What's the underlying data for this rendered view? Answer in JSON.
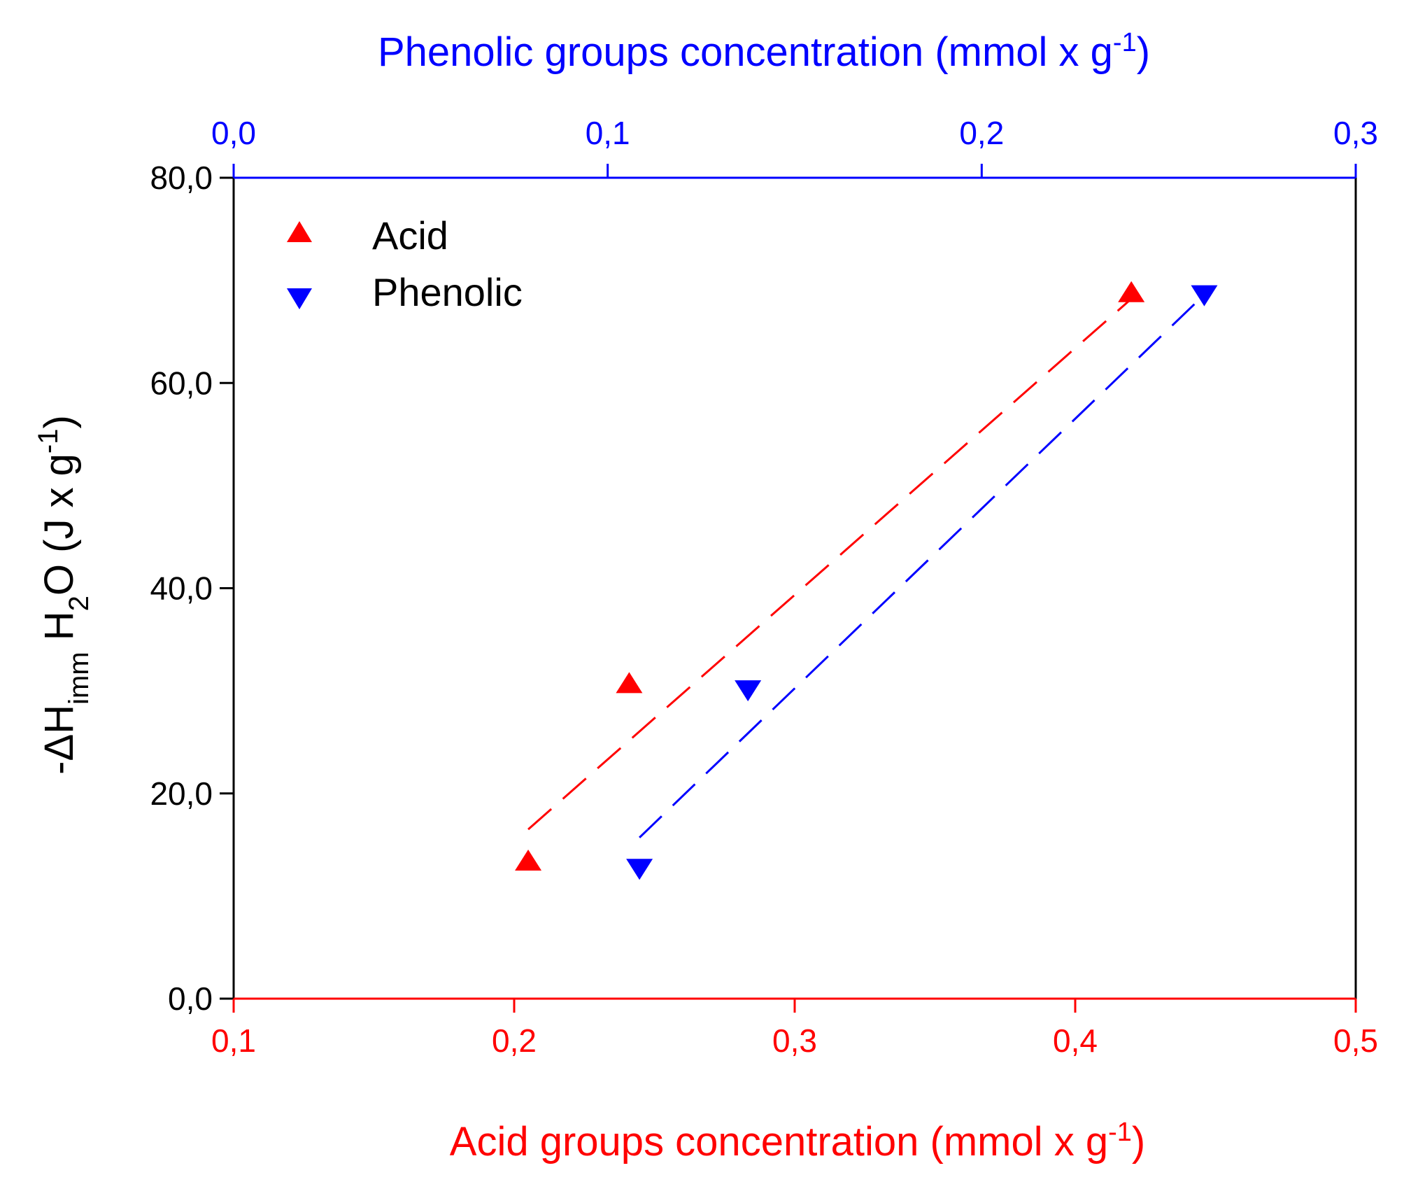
{
  "chart_data": {
    "type": "scatter",
    "title": "",
    "bottom_axis": {
      "label": "Acid groups concentration (mmol x g",
      "label_sup": "-1",
      "label_tail": ")",
      "range": [
        0.1,
        0.5
      ],
      "ticks": [
        0.1,
        0.2,
        0.3,
        0.4,
        0.5
      ],
      "tick_labels": [
        "0,1",
        "0,2",
        "0,3",
        "0,4",
        "0,5"
      ],
      "color": "#ff0000"
    },
    "top_axis": {
      "label": "Phenolic groups concentration (mmol x g",
      "label_sup": "-1",
      "label_tail": ")",
      "range": [
        0.0,
        0.3
      ],
      "ticks": [
        0.0,
        0.1,
        0.2,
        0.3
      ],
      "tick_labels": [
        "0,0",
        "0,1",
        "0,2",
        "0,3"
      ],
      "color": "#0000ff"
    },
    "left_axis": {
      "label_parts": [
        "-ΔH",
        "imm",
        " H",
        "2",
        "O  (J x g",
        "-1",
        ")"
      ],
      "range": [
        0,
        80
      ],
      "ticks": [
        0,
        20,
        40,
        60,
        80
      ],
      "tick_labels": [
        "0,0",
        "20,0",
        "40,0",
        "60,0",
        "80,0"
      ],
      "color": "#000000"
    },
    "legend": {
      "position": "top-left",
      "entries": [
        "Acid",
        "Phenolic"
      ]
    },
    "series": [
      {
        "name": "Acid",
        "axis": "bottom",
        "marker": "triangle-up",
        "color": "#ff0000",
        "points": [
          {
            "x": 0.205,
            "y": 13.5
          },
          {
            "x": 0.241,
            "y": 30.8
          },
          {
            "x": 0.42,
            "y": 68.9
          }
        ],
        "fit_line": {
          "style": "dashed",
          "x": [
            0.205,
            0.42
          ],
          "y": [
            16.5,
            68.2
          ]
        }
      },
      {
        "name": "Phenolic",
        "axis": "top",
        "marker": "triangle-down",
        "color": "#0000ff",
        "points": [
          {
            "x": 0.1085,
            "y": 12.6
          },
          {
            "x": 0.1375,
            "y": 30.0
          },
          {
            "x": 0.2595,
            "y": 68.5
          }
        ],
        "fit_line": {
          "style": "dashed",
          "x": [
            0.1085,
            0.2595
          ],
          "y": [
            15.7,
            68.6
          ]
        }
      }
    ]
  }
}
